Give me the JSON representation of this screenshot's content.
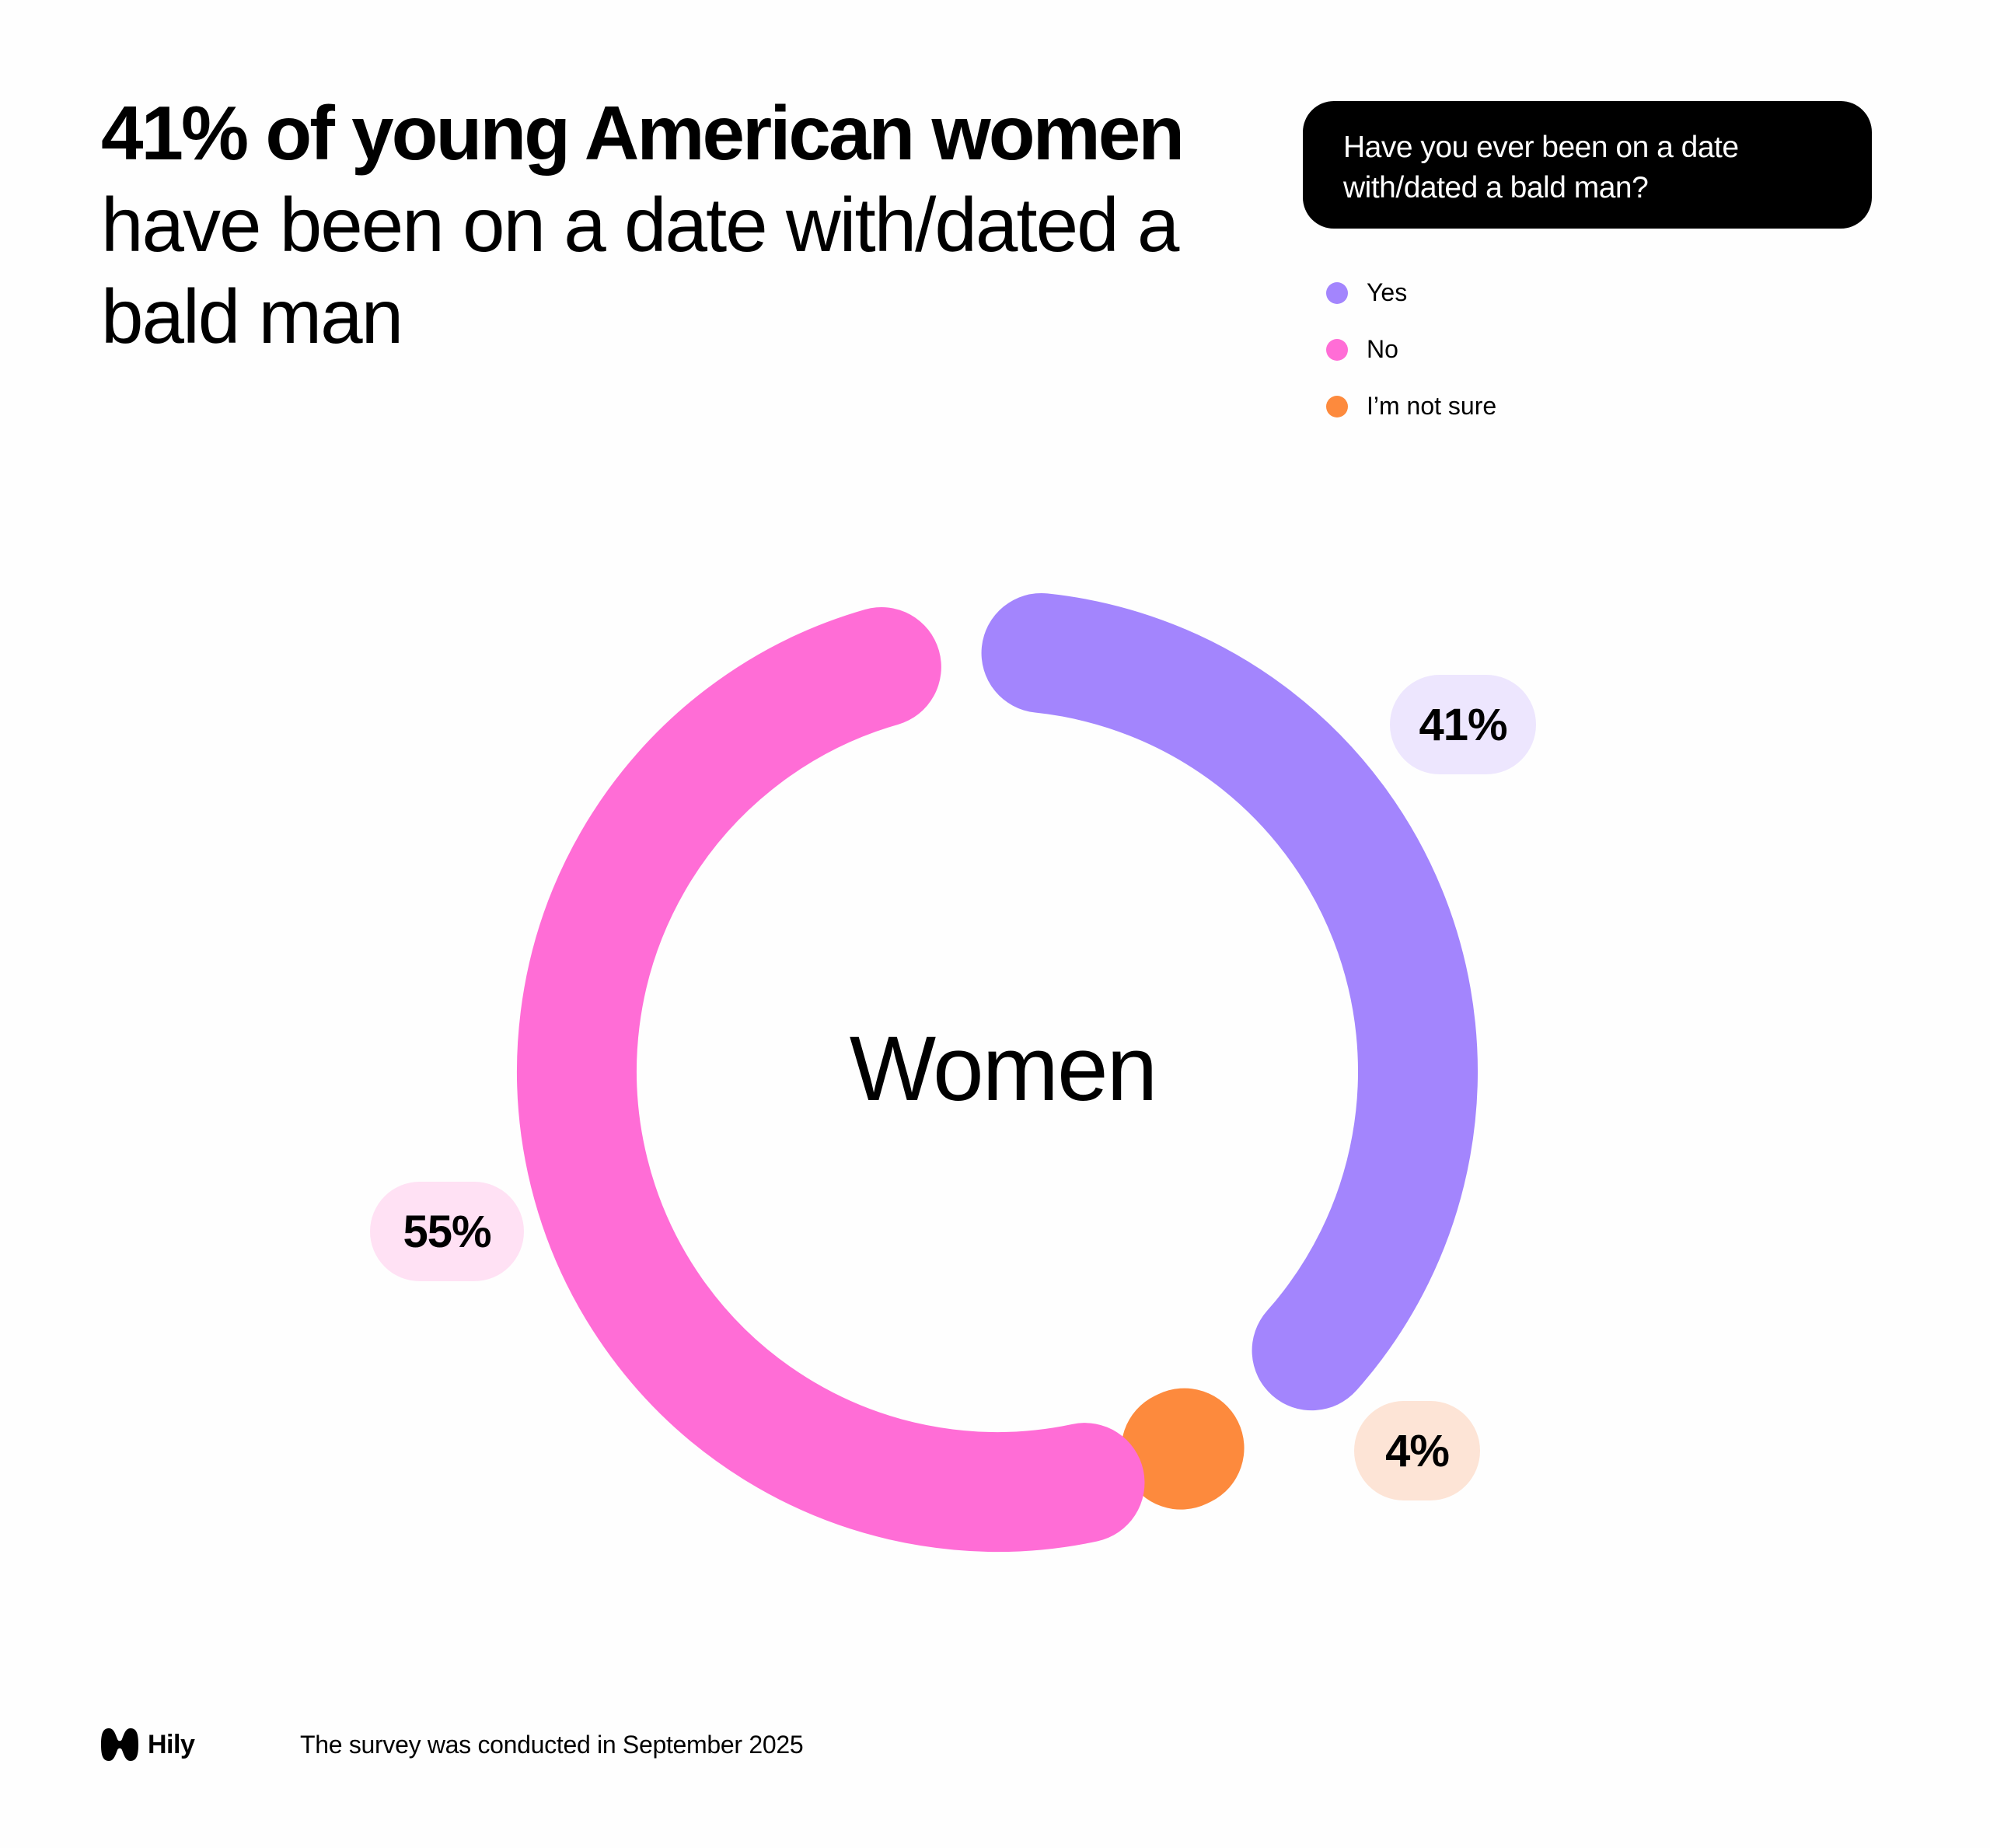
{
  "title": {
    "bold": "41% of young American women",
    "rest": "have been on a date with/dated a bald man"
  },
  "question": "Have you ever been on a date with/dated a bald man?",
  "chart_data": {
    "type": "pie",
    "variant": "donut",
    "center_label": "Women",
    "slices": [
      {
        "label": "Yes",
        "value": 41,
        "display": "41%",
        "color": "#a385fd",
        "pill_color": "#ede6fe"
      },
      {
        "label": "I’m not sure",
        "value": 4,
        "display": "4%",
        "color": "#fd8a3d",
        "pill_color": "#fde4d6"
      },
      {
        "label": "No",
        "value": 55,
        "display": "55%",
        "color": "#ff6dd6",
        "pill_color": "#ffe1f4"
      }
    ],
    "legend": [
      "Yes",
      "No",
      "I’m not sure"
    ],
    "legend_placement": "top-right"
  },
  "footer": {
    "brand": "Hily",
    "note": "The survey was conducted in September 2025"
  }
}
